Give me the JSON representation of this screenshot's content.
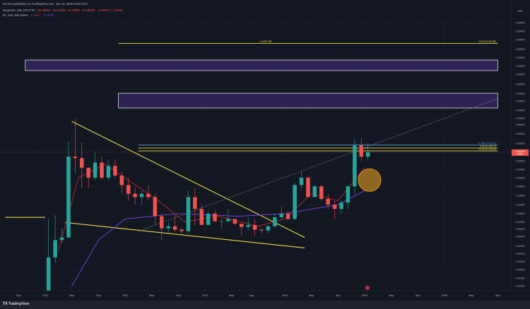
{
  "header": {
    "published": "OGYoni published on TradingView.com, Jan 23, 2025 23:00 UTC",
    "symbol": "Dogecoin, 1W, CRYPTO",
    "open": "O0.35810",
    "high": "H0.41108",
    "low": "L0.33351",
    "close": "C0.35263",
    "change": "−0.00547 (−1.53%)",
    "indicator": "50, 100, 200 SMAs",
    "sma_values": [
      "0.26857",
      "0.14834"
    ]
  },
  "footer": {
    "logo_text": "TradingView"
  },
  "currency": "USD",
  "colors": {
    "background": "#131722",
    "up": "#26a69a",
    "down": "#ef5350",
    "drawing": "#e6d84a",
    "zone": "#2e2254",
    "sma50": "#b22833",
    "sma200": "#7b3fe4",
    "fib786": "#5b9bd5",
    "circle": "#f5a623"
  },
  "chart_data": {
    "type": "candlestick",
    "title": "Dogecoin, 1W, CRYPTO",
    "y_scale": "log",
    "ylim": [
      0.016,
      7.2
    ],
    "xlim": [
      "2020-07",
      "2026-10"
    ],
    "grid": true,
    "y_ticks": [
      "6.30000",
      "5.20000",
      "4.30000",
      "3.50000",
      "2.90000",
      "2.40000",
      "2.00000",
      "1.60000",
      "1.30000",
      "1.10000",
      "0.90000",
      "0.75000",
      "0.65000",
      "0.53000",
      "0.43000",
      "0.29000",
      "0.24000",
      "0.20000",
      "0.16500",
      "0.13500",
      "0.11000",
      "0.09000",
      "0.07500",
      "0.06400",
      "0.05400",
      "0.04400",
      "0.03700",
      "0.03100",
      "0.02600",
      "0.02150",
      "0.01810"
    ],
    "x_ticks": [
      [
        "2020-09",
        "Sep"
      ],
      [
        "2021-01",
        "2021"
      ],
      [
        "2021-05",
        "May"
      ],
      [
        "2021-09",
        "Sep"
      ],
      [
        "2022-01",
        "2022"
      ],
      [
        "2022-05",
        "May"
      ],
      [
        "2022-09",
        "Sep"
      ],
      [
        "2023-01",
        "2023"
      ],
      [
        "2023-05",
        "May"
      ],
      [
        "2023-08",
        "Aug"
      ],
      [
        "2024-01",
        "2024"
      ],
      [
        "2024-05",
        "May"
      ],
      [
        "2024-09",
        "Sep"
      ],
      [
        "2025-01",
        "2025"
      ],
      [
        "2025-05",
        "May"
      ],
      [
        "2025-09",
        "Sep"
      ],
      [
        "2026-01",
        "2026"
      ],
      [
        "2026-05",
        "May"
      ],
      [
        "2026-09",
        "Sep"
      ]
    ],
    "last_price": {
      "value": "0.35263",
      "countdown": "2d 5h"
    },
    "candles": [
      [
        "2021-01",
        0.0047,
        0.08,
        0.0045,
        0.034
      ],
      [
        "2021-02",
        0.034,
        0.087,
        0.03,
        0.05
      ],
      [
        "2021-03",
        0.05,
        0.065,
        0.046,
        0.053
      ],
      [
        "2021-04",
        0.053,
        0.45,
        0.052,
        0.32
      ],
      [
        "2021-05",
        0.32,
        0.74,
        0.22,
        0.31
      ],
      [
        "2021-06",
        0.31,
        0.44,
        0.16,
        0.25
      ],
      [
        "2021-07",
        0.25,
        0.25,
        0.16,
        0.2
      ],
      [
        "2021-08",
        0.2,
        0.35,
        0.19,
        0.28
      ],
      [
        "2021-09",
        0.28,
        0.32,
        0.19,
        0.2
      ],
      [
        "2021-10",
        0.2,
        0.3,
        0.19,
        0.26
      ],
      [
        "2021-11",
        0.26,
        0.3,
        0.2,
        0.21
      ],
      [
        "2021-12",
        0.21,
        0.23,
        0.14,
        0.17
      ],
      [
        "2022-01",
        0.17,
        0.2,
        0.12,
        0.14
      ],
      [
        "2022-02",
        0.14,
        0.16,
        0.11,
        0.13
      ],
      [
        "2022-03",
        0.13,
        0.15,
        0.11,
        0.14
      ],
      [
        "2022-04",
        0.14,
        0.17,
        0.12,
        0.13
      ],
      [
        "2022-05",
        0.13,
        0.14,
        0.07,
        0.085
      ],
      [
        "2022-06",
        0.085,
        0.09,
        0.05,
        0.065
      ],
      [
        "2022-07",
        0.065,
        0.075,
        0.058,
        0.068
      ],
      [
        "2022-08",
        0.068,
        0.087,
        0.06,
        0.063
      ],
      [
        "2022-09",
        0.063,
        0.066,
        0.056,
        0.061
      ],
      [
        "2022-10",
        0.061,
        0.15,
        0.058,
        0.13
      ],
      [
        "2022-11",
        0.13,
        0.16,
        0.07,
        0.1
      ],
      [
        "2022-12",
        0.1,
        0.11,
        0.07,
        0.07
      ],
      [
        "2023-01",
        0.07,
        0.095,
        0.07,
        0.09
      ],
      [
        "2023-02",
        0.09,
        0.097,
        0.075,
        0.076
      ],
      [
        "2023-03",
        0.076,
        0.08,
        0.065,
        0.076
      ],
      [
        "2023-04",
        0.076,
        0.1,
        0.075,
        0.08
      ],
      [
        "2023-05",
        0.08,
        0.08,
        0.07,
        0.072
      ],
      [
        "2023-06",
        0.072,
        0.072,
        0.055,
        0.067
      ],
      [
        "2023-07",
        0.067,
        0.083,
        0.062,
        0.07
      ],
      [
        "2023-08",
        0.07,
        0.08,
        0.055,
        0.063
      ],
      [
        "2023-09",
        0.063,
        0.065,
        0.058,
        0.062
      ],
      [
        "2023-10",
        0.062,
        0.07,
        0.058,
        0.068
      ],
      [
        "2023-11",
        0.068,
        0.09,
        0.066,
        0.083
      ],
      [
        "2023-12",
        0.083,
        0.107,
        0.08,
        0.09
      ],
      [
        "2024-01",
        0.09,
        0.095,
        0.077,
        0.08
      ],
      [
        "2024-02",
        0.08,
        0.18,
        0.078,
        0.17
      ],
      [
        "2024-03",
        0.17,
        0.23,
        0.15,
        0.2
      ],
      [
        "2024-04",
        0.2,
        0.21,
        0.13,
        0.13
      ],
      [
        "2024-05",
        0.13,
        0.17,
        0.13,
        0.165
      ],
      [
        "2024-06",
        0.165,
        0.17,
        0.12,
        0.125
      ],
      [
        "2024-07",
        0.125,
        0.14,
        0.1,
        0.11
      ],
      [
        "2024-08",
        0.11,
        0.12,
        0.08,
        0.1
      ],
      [
        "2024-09",
        0.1,
        0.12,
        0.09,
        0.115
      ],
      [
        "2024-10",
        0.115,
        0.17,
        0.1,
        0.165
      ],
      [
        "2024-11",
        0.165,
        0.48,
        0.14,
        0.41
      ],
      [
        "2024-12",
        0.41,
        0.48,
        0.29,
        0.32
      ],
      [
        "2025-01",
        0.32,
        0.43,
        0.3,
        0.35263
      ]
    ],
    "sma50": [
      [
        "2021-03",
        0.04
      ],
      [
        "2021-06",
        0.2
      ],
      [
        "2021-10",
        0.27
      ],
      [
        "2022-02",
        0.18
      ],
      [
        "2022-06",
        0.12
      ],
      [
        "2022-10",
        0.075
      ],
      [
        "2023-03",
        0.085
      ],
      [
        "2023-09",
        0.068
      ],
      [
        "2024-01",
        0.08
      ],
      [
        "2024-05",
        0.14
      ],
      [
        "2024-09",
        0.12
      ],
      [
        "2025-01",
        0.25
      ]
    ],
    "sma200": [
      [
        "2021-05",
        0.018
      ],
      [
        "2021-09",
        0.05
      ],
      [
        "2022-01",
        0.08
      ],
      [
        "2022-09",
        0.09
      ],
      [
        "2023-06",
        0.085
      ],
      [
        "2024-01",
        0.09
      ],
      [
        "2024-09",
        0.11
      ],
      [
        "2025-01",
        0.15
      ]
    ],
    "zones": [
      {
        "from": "2020-10",
        "to": "2026-09",
        "low": 2.17,
        "high": 2.74
      },
      {
        "from": "2021-12",
        "to": "2026-09",
        "low": 0.944,
        "high": 1.31
      }
    ],
    "levels": [
      {
        "label": "1.618 FIB",
        "right_label": "1.618 (3.96130)",
        "value": 3.9613,
        "from": "2021-12",
        "to": "2026-09",
        "kind": "fib1618"
      },
      {
        "label": "",
        "right_label": "0.786 (0.41471)",
        "value": 0.41471,
        "from": "2022-03",
        "to": "2026-09",
        "kind": "fib786"
      },
      {
        "label": "",
        "right_label": "0.65 (0.38677)",
        "value": 0.38677,
        "from": "2022-03",
        "to": "2026-09",
        "kind": "fib"
      },
      {
        "label": "",
        "right_label": "0.618 (0.36295)",
        "value": 0.36295,
        "from": "2022-03",
        "to": "2026-09",
        "kind": "fib"
      }
    ],
    "trendlines": [
      {
        "from": [
          "2021-05",
          0.7
        ],
        "to": [
          "2024-04",
          0.053
        ],
        "style": "solid"
      },
      {
        "from": [
          "2021-04",
          0.074
        ],
        "to": [
          "2024-04",
          0.042
        ],
        "style": "solid"
      },
      {
        "from": [
          "2020-07",
          0.083
        ],
        "to": [
          "2021-01",
          0.083
        ],
        "style": "solid"
      },
      {
        "from": [
          "2022-03",
          0.061
        ],
        "to": [
          "2026-09",
          1.16
        ],
        "style": "dotted"
      }
    ],
    "circle": {
      "date": "2025-01",
      "price": 0.19
    }
  }
}
